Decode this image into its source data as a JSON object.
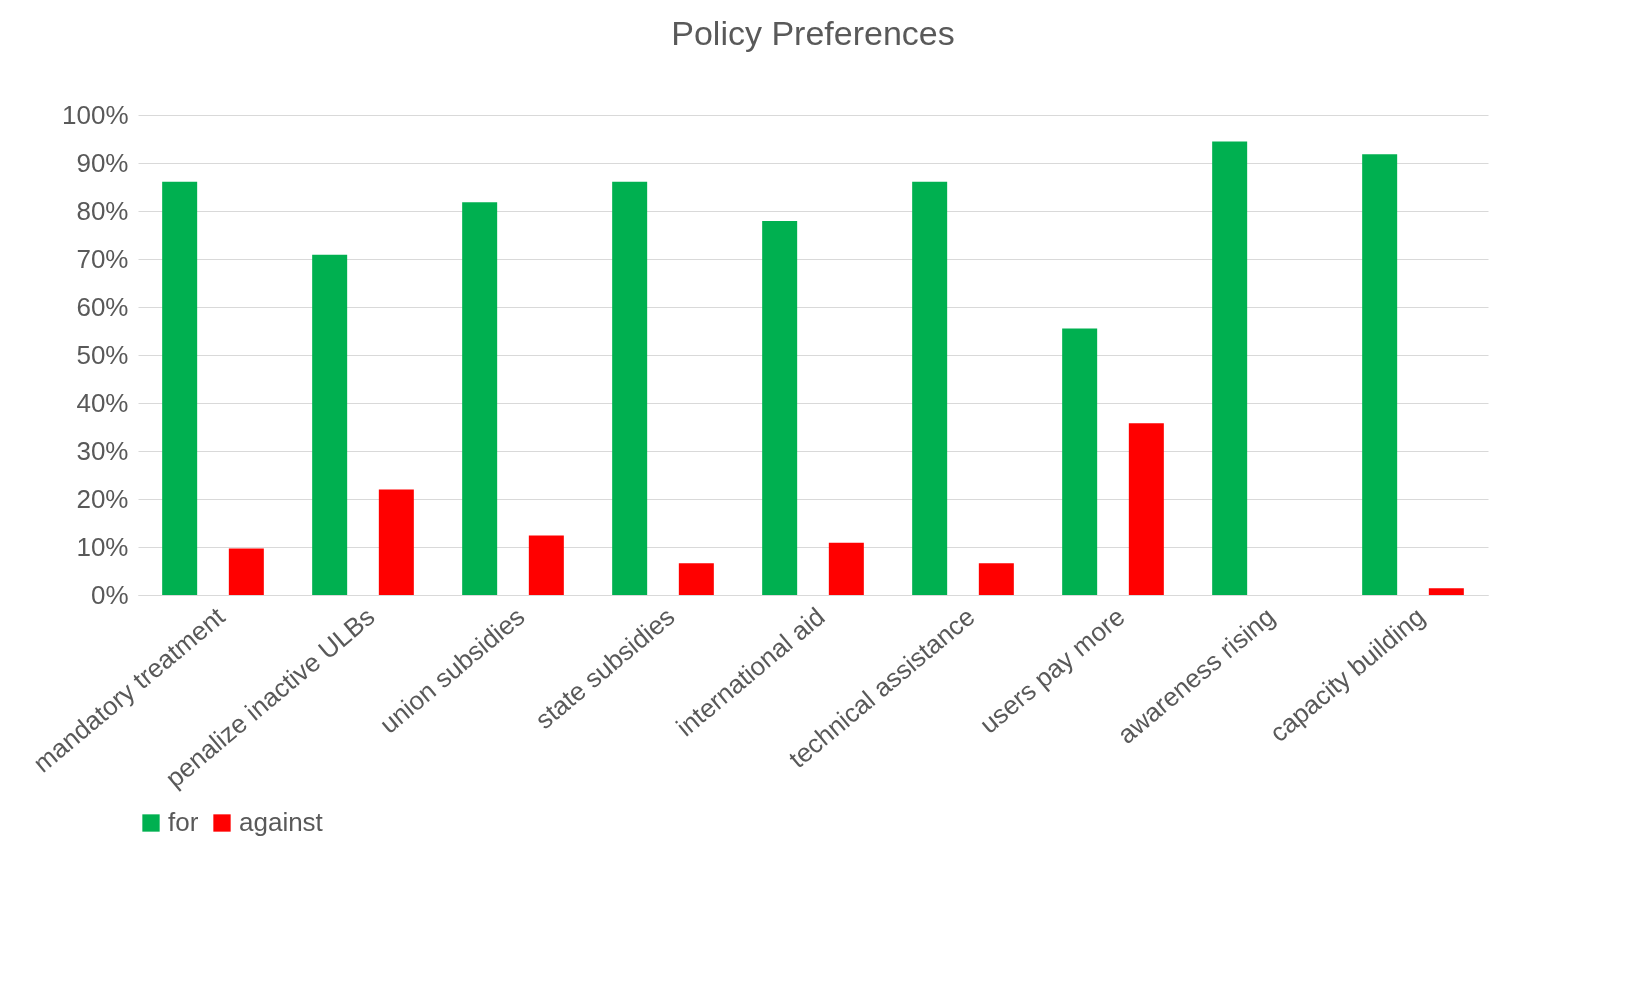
{
  "chart_data": {
    "type": "bar",
    "title": "Policy Preferences",
    "categories": [
      "mandatory treatment",
      "penalize inactive ULBs",
      "union subsidies",
      "state subsidies",
      "international aid",
      "technical assistance",
      "users pay more",
      "awareness rising",
      "capacity building"
    ],
    "series": [
      {
        "name": "for",
        "color": "#00b050",
        "values": [
          86.1,
          70.9,
          81.8,
          86.1,
          77.9,
          86.1,
          55.5,
          94.5,
          91.8
        ]
      },
      {
        "name": "against",
        "color": "#ff0000",
        "values": [
          9.7,
          22.0,
          12.4,
          6.6,
          10.9,
          6.6,
          35.8,
          0,
          1.4
        ]
      }
    ],
    "ylim": [
      0,
      100
    ],
    "yticks": [
      {
        "value": 0,
        "label": "0%"
      },
      {
        "value": 10,
        "label": "10%"
      },
      {
        "value": 20,
        "label": "20%"
      },
      {
        "value": 30,
        "label": "30%"
      },
      {
        "value": 40,
        "label": "40%"
      },
      {
        "value": 50,
        "label": "50%"
      },
      {
        "value": 60,
        "label": "60%"
      },
      {
        "value": 70,
        "label": "70%"
      },
      {
        "value": 80,
        "label": "80%"
      },
      {
        "value": 90,
        "label": "90%"
      },
      {
        "value": 100,
        "label": "100%"
      }
    ],
    "grid": "y",
    "legend": "bottom"
  }
}
